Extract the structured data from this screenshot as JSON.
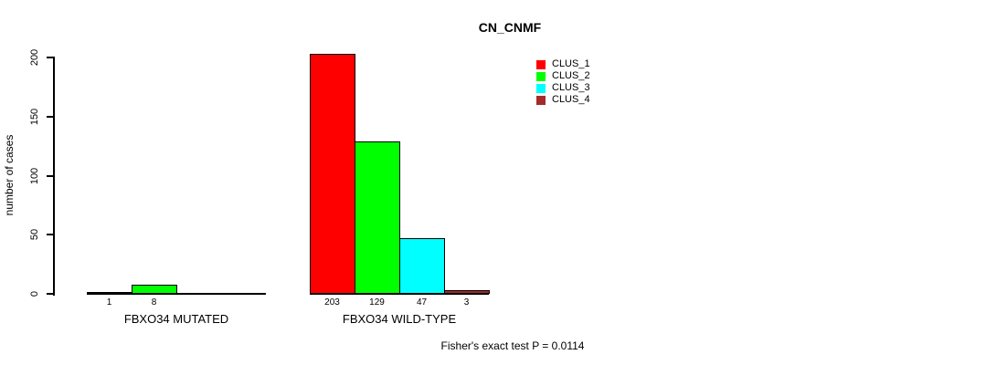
{
  "chart_data": {
    "type": "bar",
    "title": "CN_CNMF",
    "ylabel": "number of cases",
    "xlabel": "",
    "ylim": [
      0,
      200
    ],
    "yticks": [
      0,
      50,
      100,
      150,
      200
    ],
    "grid": false,
    "categories": [
      "FBXO34 MUTATED",
      "FBXO34 WILD-TYPE"
    ],
    "series": [
      {
        "name": "CLUS_1",
        "color": "#FF0000",
        "values": [
          1,
          203
        ]
      },
      {
        "name": "CLUS_2",
        "color": "#00FF00",
        "values": [
          8,
          129
        ]
      },
      {
        "name": "CLUS_3",
        "color": "#00FFFF",
        "values": [
          0,
          47
        ]
      },
      {
        "name": "CLUS_4",
        "color": "#A52A2A",
        "values": [
          0,
          3
        ]
      }
    ],
    "bar_value_labels_shown_only_if_positive": true,
    "legend": {
      "position": "top-right",
      "entries": [
        "CLUS_1",
        "CLUS_2",
        "CLUS_3",
        "CLUS_4"
      ]
    },
    "annotation": "Fisher's exact test P = 0.0114"
  }
}
